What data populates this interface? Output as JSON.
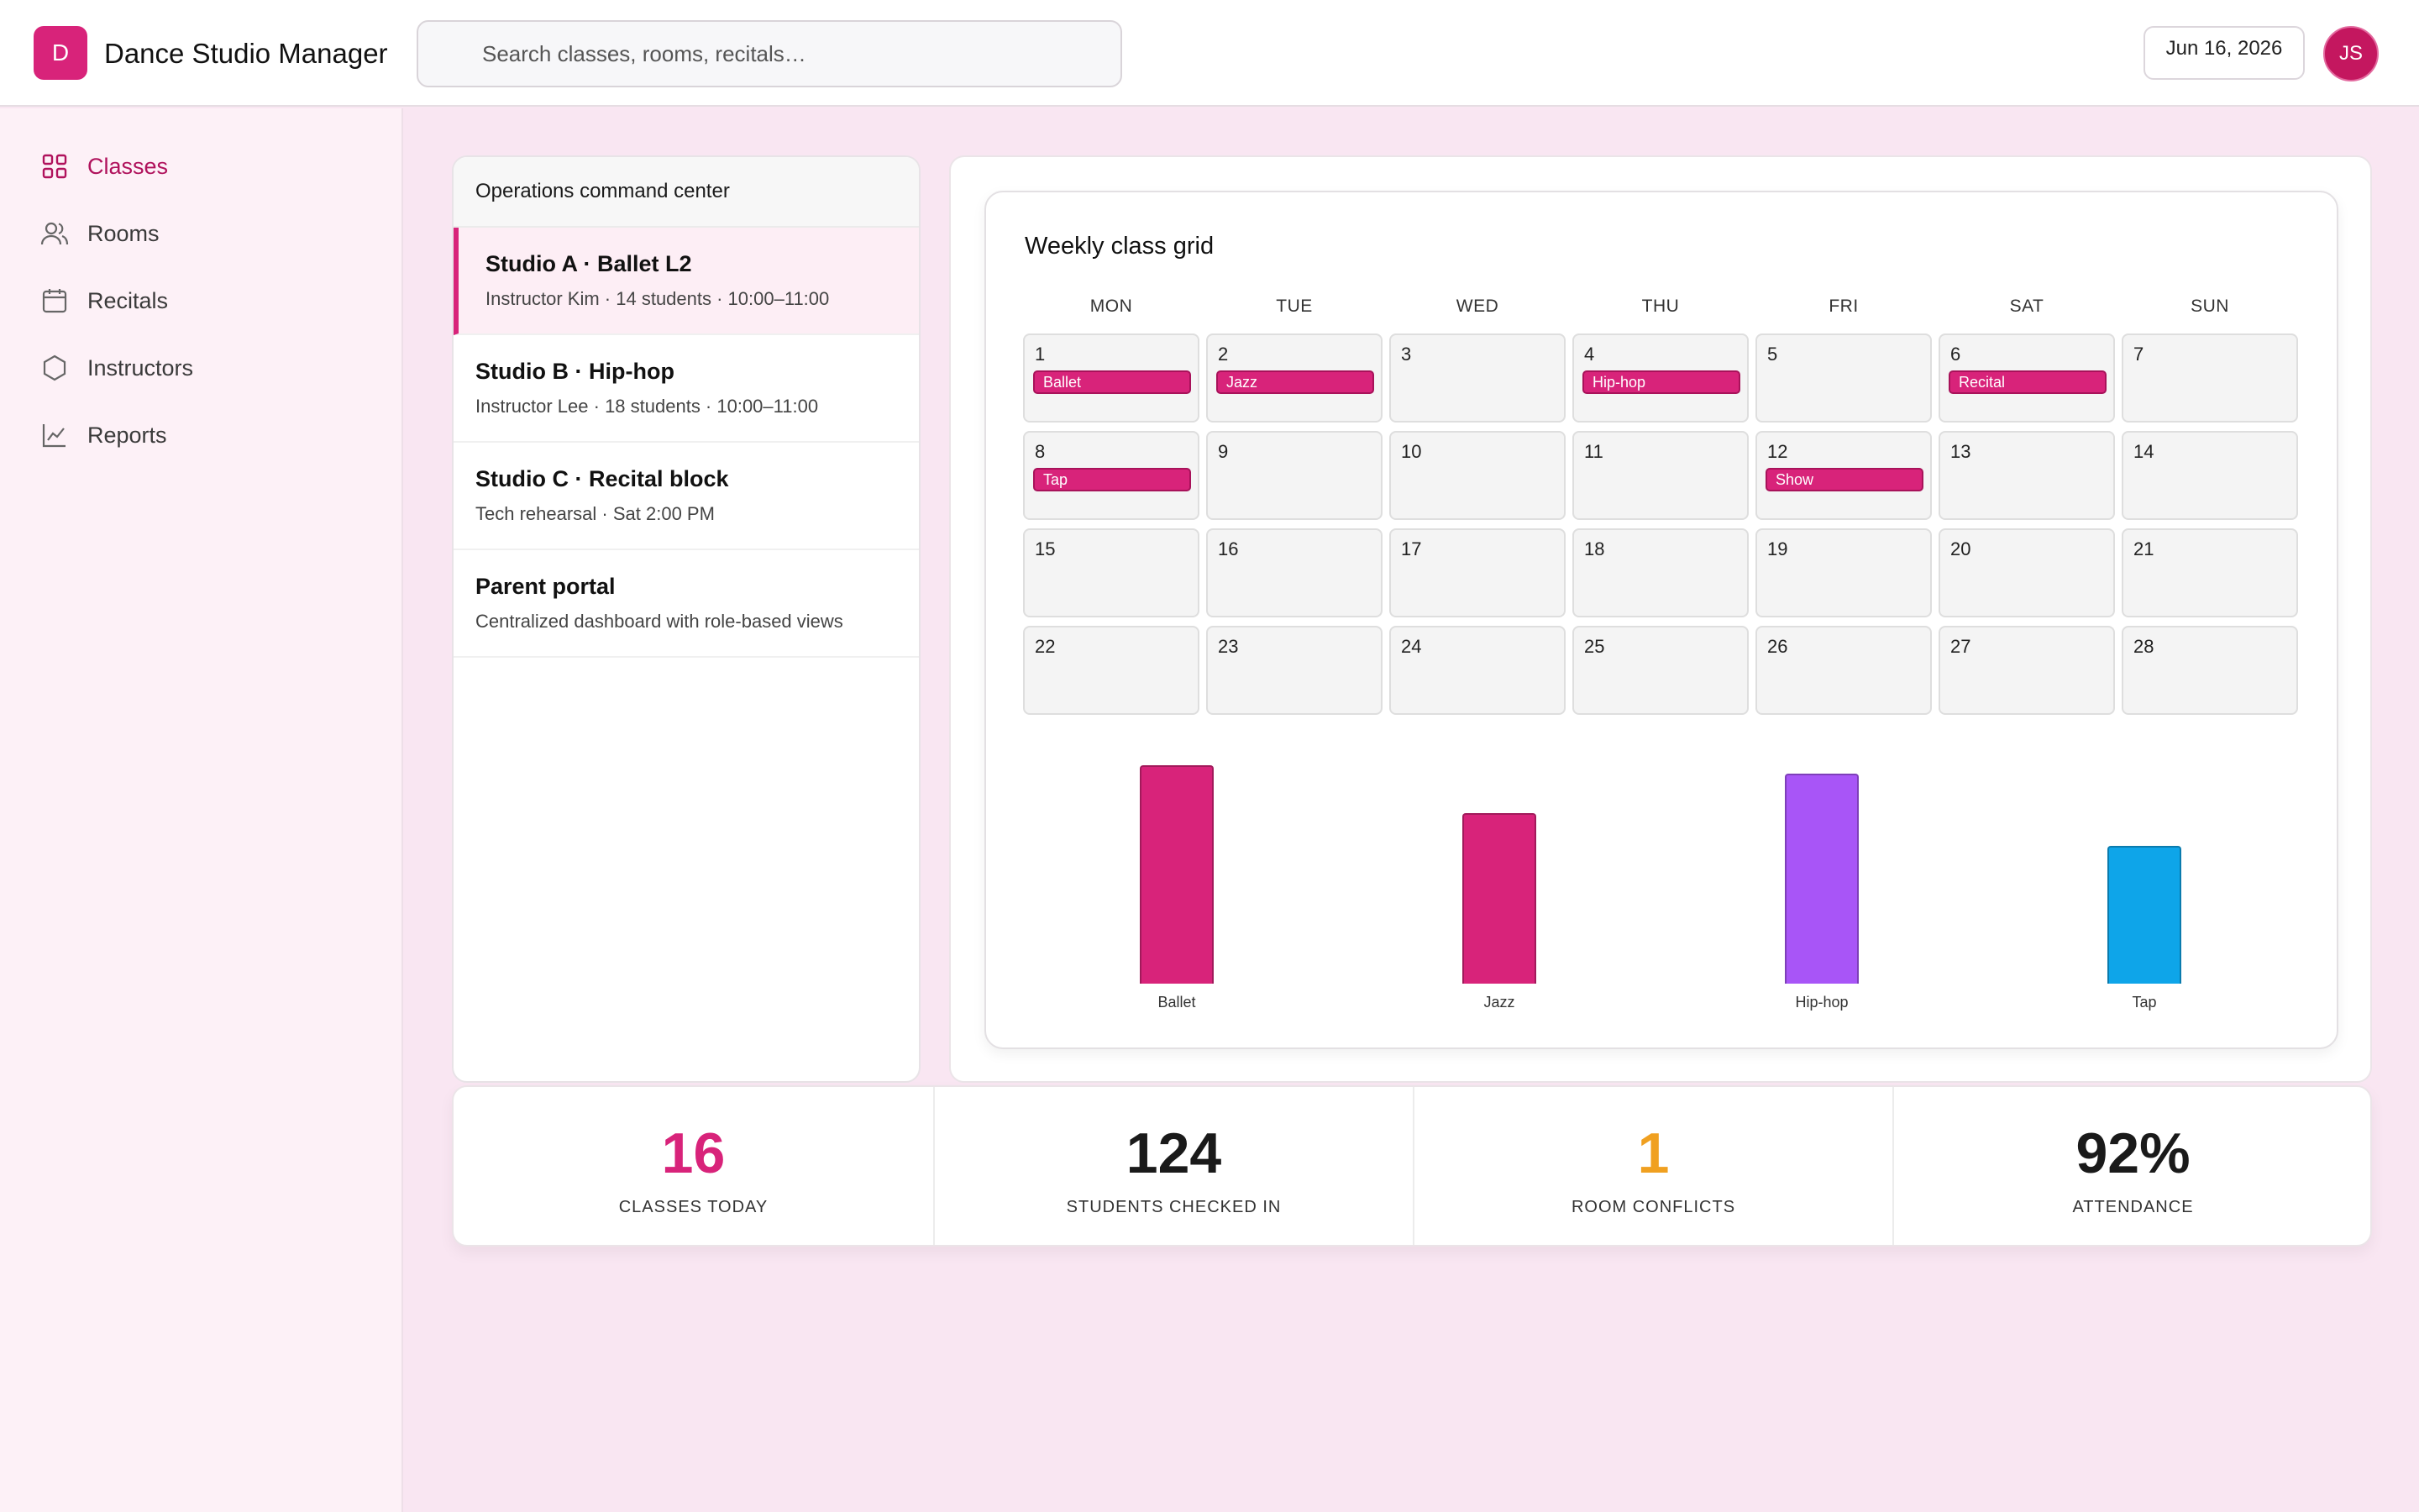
{
  "app": {
    "logo_letter": "D",
    "title": "Dance Studio Manager"
  },
  "search": {
    "placeholder": "Search classes, rooms, recitals…"
  },
  "header": {
    "date": "Jun 16, 2026",
    "user_initials": "JS"
  },
  "sidebar": {
    "items": [
      {
        "label": "Classes",
        "icon": "grid-icon",
        "active": true
      },
      {
        "label": "Rooms",
        "icon": "users-icon",
        "active": false
      },
      {
        "label": "Recitals",
        "icon": "calendar-icon",
        "active": false
      },
      {
        "label": "Instructors",
        "icon": "hexagon-icon",
        "active": false
      },
      {
        "label": "Reports",
        "icon": "chart-line-icon",
        "active": false
      }
    ]
  },
  "ops": {
    "title": "Operations command center",
    "items": [
      {
        "title": "Studio A · Ballet L2",
        "subtitle": "Instructor Kim · 14 students · 10:00–11:00",
        "active": true
      },
      {
        "title": "Studio B · Hip-hop",
        "subtitle": "Instructor Lee · 18 students · 10:00–11:00",
        "active": false
      },
      {
        "title": "Studio C · Recital block",
        "subtitle": "Tech rehearsal · Sat 2:00 PM",
        "active": false
      },
      {
        "title": "Parent portal",
        "subtitle": "Centralized dashboard with role-based views",
        "active": false
      }
    ]
  },
  "calendar": {
    "title": "Weekly class grid",
    "weekdays": [
      "MON",
      "TUE",
      "WED",
      "THU",
      "FRI",
      "SAT",
      "SUN"
    ],
    "days": [
      {
        "n": "1",
        "tag": "Ballet"
      },
      {
        "n": "2",
        "tag": "Jazz"
      },
      {
        "n": "3",
        "tag": ""
      },
      {
        "n": "4",
        "tag": "Hip-hop"
      },
      {
        "n": "5",
        "tag": ""
      },
      {
        "n": "6",
        "tag": "Recital"
      },
      {
        "n": "7",
        "tag": ""
      },
      {
        "n": "8",
        "tag": "Tap"
      },
      {
        "n": "9",
        "tag": ""
      },
      {
        "n": "10",
        "tag": ""
      },
      {
        "n": "11",
        "tag": ""
      },
      {
        "n": "12",
        "tag": "Show"
      },
      {
        "n": "13",
        "tag": ""
      },
      {
        "n": "14",
        "tag": ""
      },
      {
        "n": "15",
        "tag": ""
      },
      {
        "n": "16",
        "tag": ""
      },
      {
        "n": "17",
        "tag": ""
      },
      {
        "n": "18",
        "tag": ""
      },
      {
        "n": "19",
        "tag": ""
      },
      {
        "n": "20",
        "tag": ""
      },
      {
        "n": "21",
        "tag": ""
      },
      {
        "n": "22",
        "tag": ""
      },
      {
        "n": "23",
        "tag": ""
      },
      {
        "n": "24",
        "tag": ""
      },
      {
        "n": "25",
        "tag": ""
      },
      {
        "n": "26",
        "tag": ""
      },
      {
        "n": "27",
        "tag": ""
      },
      {
        "n": "28",
        "tag": ""
      }
    ]
  },
  "chart_data": {
    "type": "bar",
    "categories": [
      "Ballet",
      "Jazz",
      "Hip-hop",
      "Tap"
    ],
    "values": [
      100,
      78,
      96,
      63
    ],
    "colors": [
      "#d8237a",
      "#d8237a",
      "#a855f7",
      "#0ea5e9"
    ],
    "ylim": [
      0,
      100
    ],
    "grid": false
  },
  "stats": [
    {
      "value": "16",
      "label": "CLASSES TODAY",
      "color": "#d8237a"
    },
    {
      "value": "124",
      "label": "STUDENTS CHECKED IN",
      "color": "#1a1a1a"
    },
    {
      "value": "1",
      "label": "ROOM CONFLICTS",
      "color": "#f0a020"
    },
    {
      "value": "92%",
      "label": "ATTENDANCE",
      "color": "#1a1a1a"
    }
  ],
  "colors": {
    "accent": "#d8237a",
    "background": "#f9e6f2"
  }
}
